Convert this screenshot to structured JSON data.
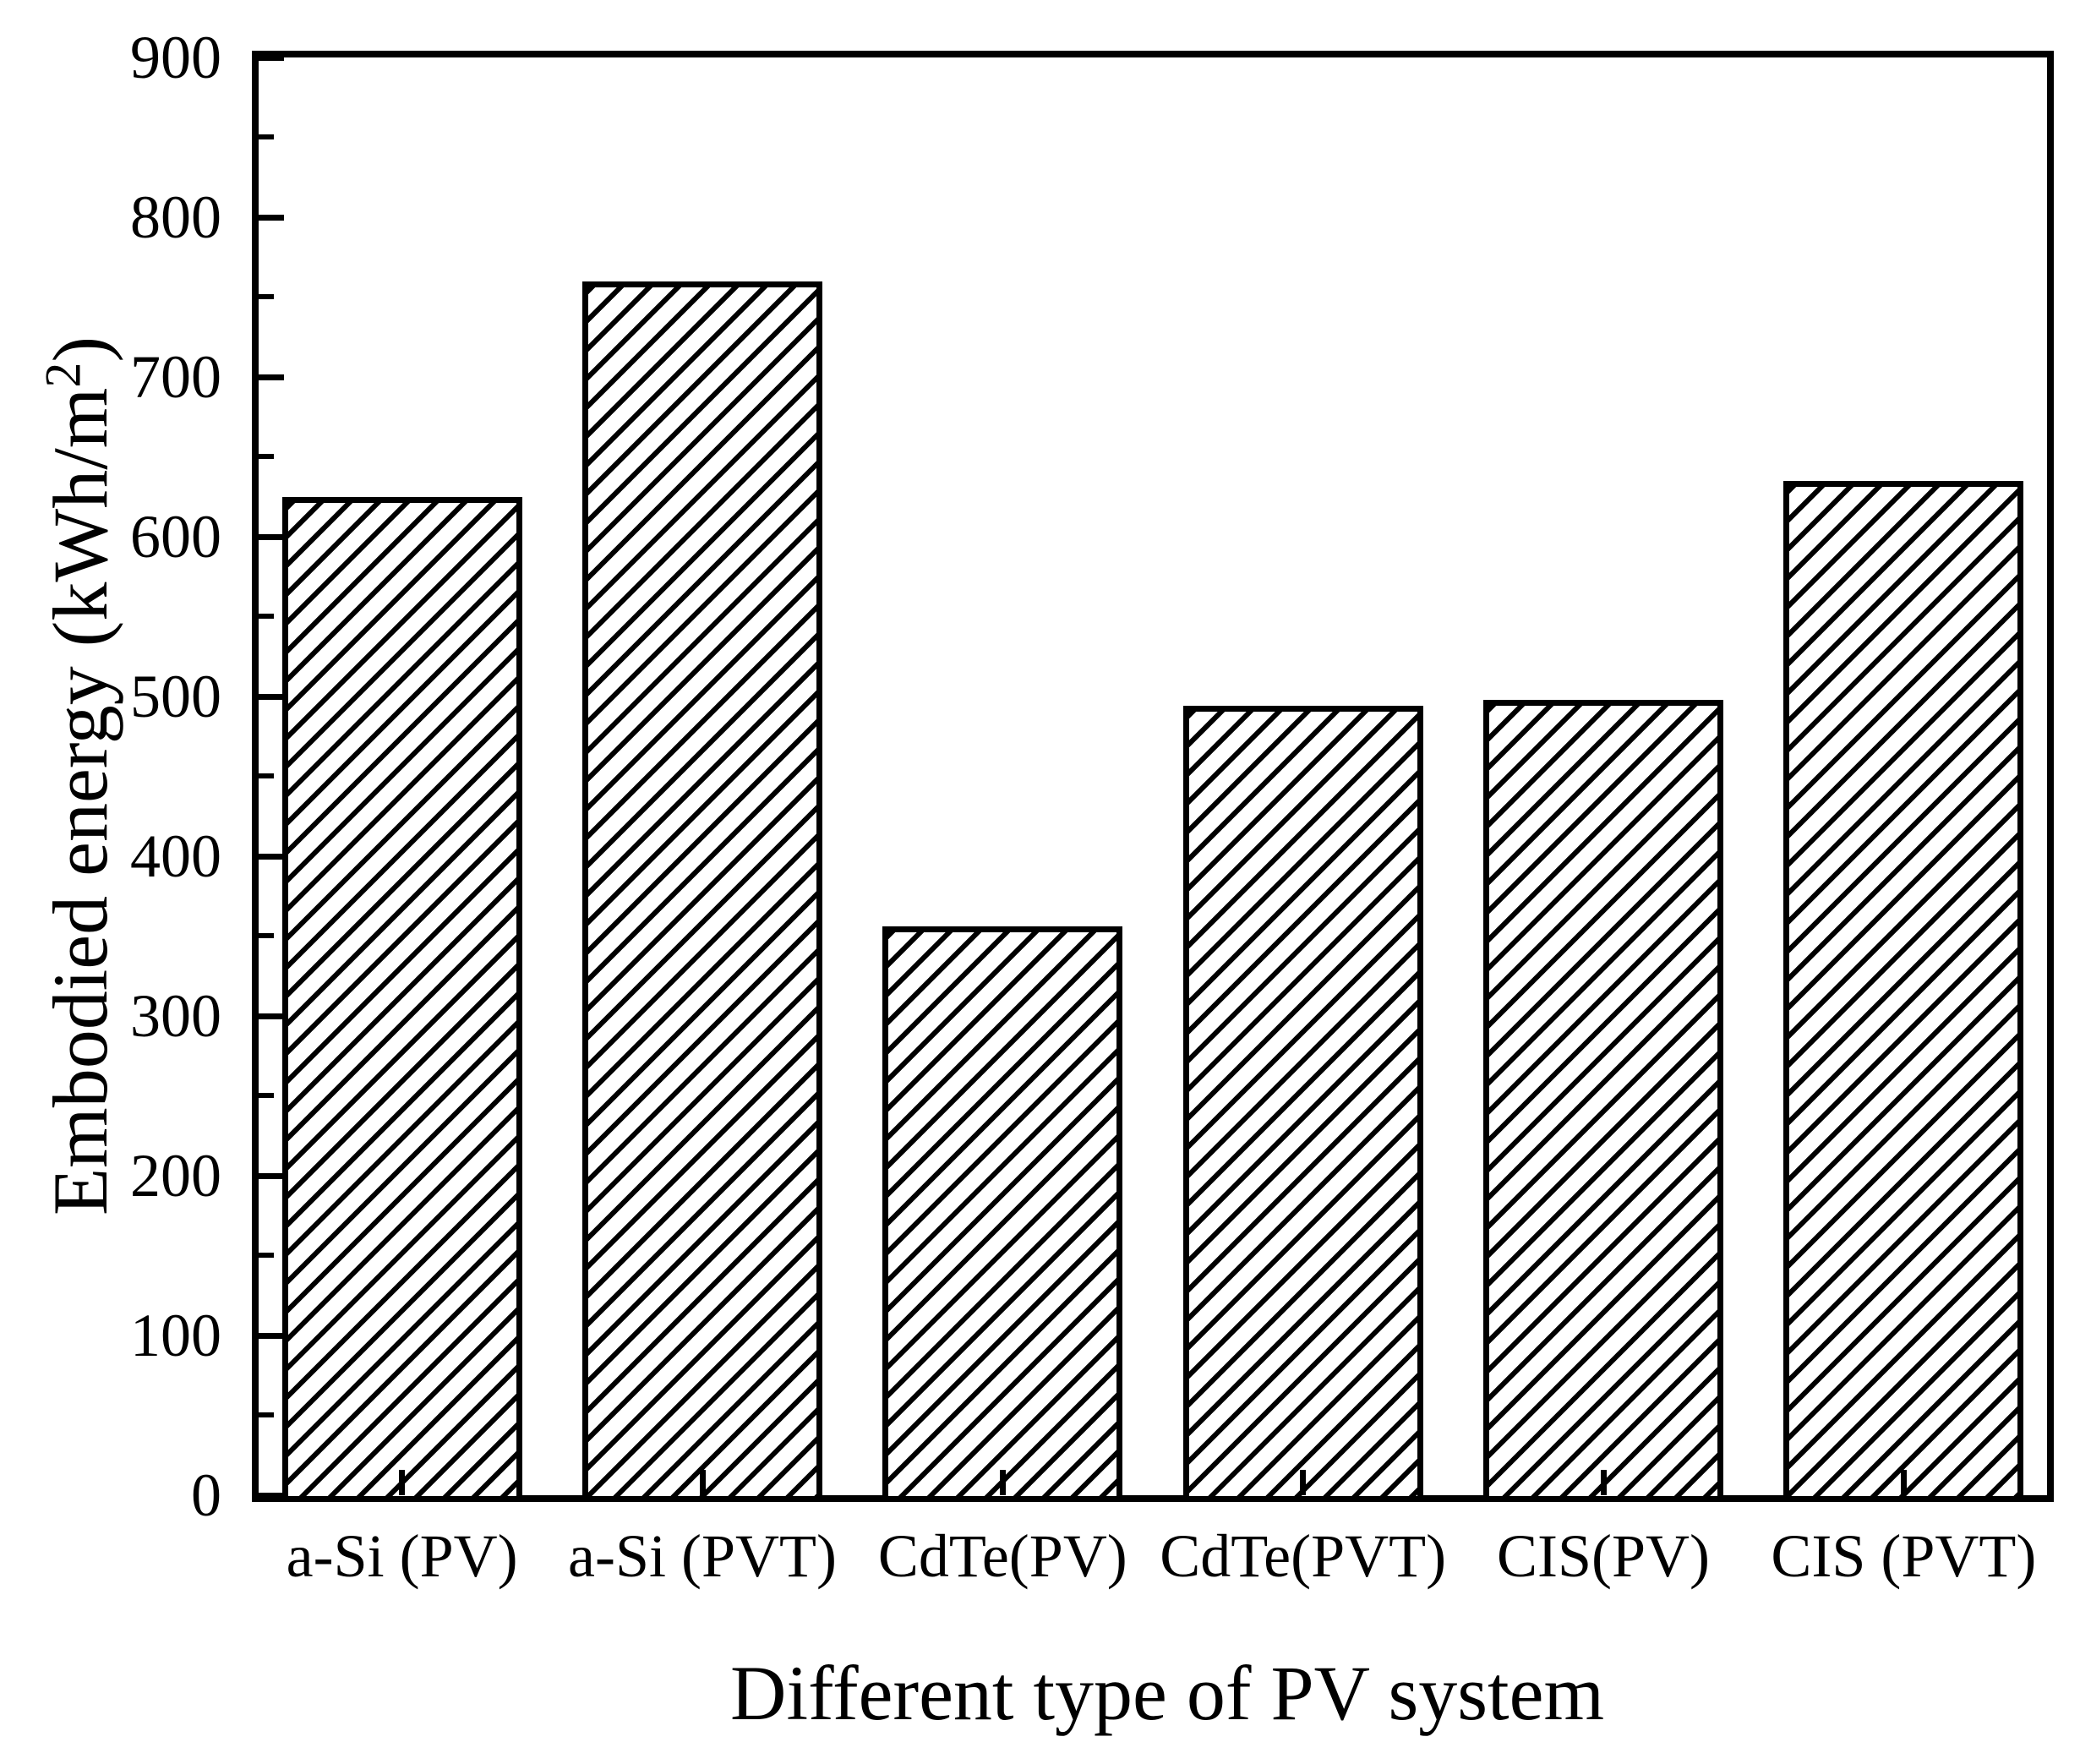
{
  "chart_data": {
    "type": "bar",
    "xlabel": "Different type of PV system",
    "ylabel": {
      "prefix": "Embodied energy (kWh/m",
      "superscript": "2",
      "suffix": ")"
    },
    "categories": [
      "a-Si (PV)",
      "a-Si (PVT)",
      "CdTe(PV)",
      "CdTe(PVT)",
      "CIS(PV)",
      "CIS (PVT)"
    ],
    "values": [
      625,
      760,
      356,
      494,
      498,
      635
    ],
    "ylim": [
      0,
      900
    ],
    "ytick_step": 100,
    "yminor_step": 50,
    "ytick_labels": [
      "0",
      "100",
      "200",
      "300",
      "400",
      "500",
      "600",
      "700",
      "800",
      "900"
    ],
    "grid": false,
    "bar_fill": "#ffffff",
    "hatch": "diagonal-forward-slash",
    "line_color": "#000000"
  }
}
